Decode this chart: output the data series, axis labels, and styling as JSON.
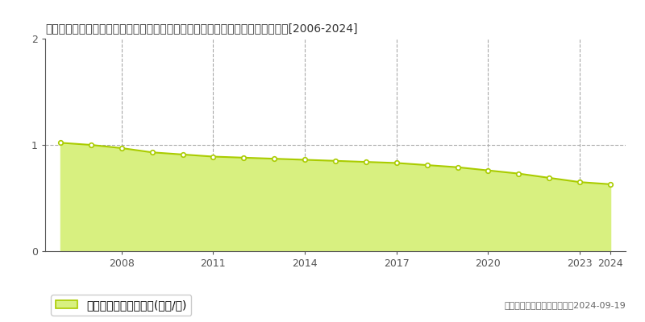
{
  "title": "福井県大飯郡おおい町名田庄納田終１０１号棚橋２２番１　基準地価　地価推移[2006-2024]",
  "years": [
    2006,
    2007,
    2008,
    2009,
    2010,
    2011,
    2012,
    2013,
    2014,
    2015,
    2016,
    2017,
    2018,
    2019,
    2020,
    2021,
    2022,
    2023,
    2024
  ],
  "values": [
    1.02,
    1.0,
    0.97,
    0.93,
    0.91,
    0.89,
    0.88,
    0.87,
    0.86,
    0.85,
    0.84,
    0.83,
    0.81,
    0.79,
    0.76,
    0.73,
    0.69,
    0.65,
    0.63
  ],
  "line_color": "#aacc00",
  "fill_color": "#d8f080",
  "marker_color": "#ffffff",
  "marker_edge_color": "#aacc00",
  "grid_color": "#aaaaaa",
  "background_color": "#ffffff",
  "ylim": [
    0,
    2
  ],
  "yticks": [
    0,
    1,
    2
  ],
  "legend_label": "基準地価　平均嵪単価(万円/嵪)",
  "copyright_text": "（Ｃ）土地価格ドットコム　2024-09-19",
  "title_fontsize": 10.5,
  "tick_fontsize": 9,
  "legend_fontsize": 9,
  "copyright_fontsize": 8,
  "grid_years": [
    2008,
    2011,
    2014,
    2017,
    2020,
    2023
  ],
  "xtick_years": [
    2008,
    2011,
    2014,
    2017,
    2020,
    2023,
    2024
  ]
}
